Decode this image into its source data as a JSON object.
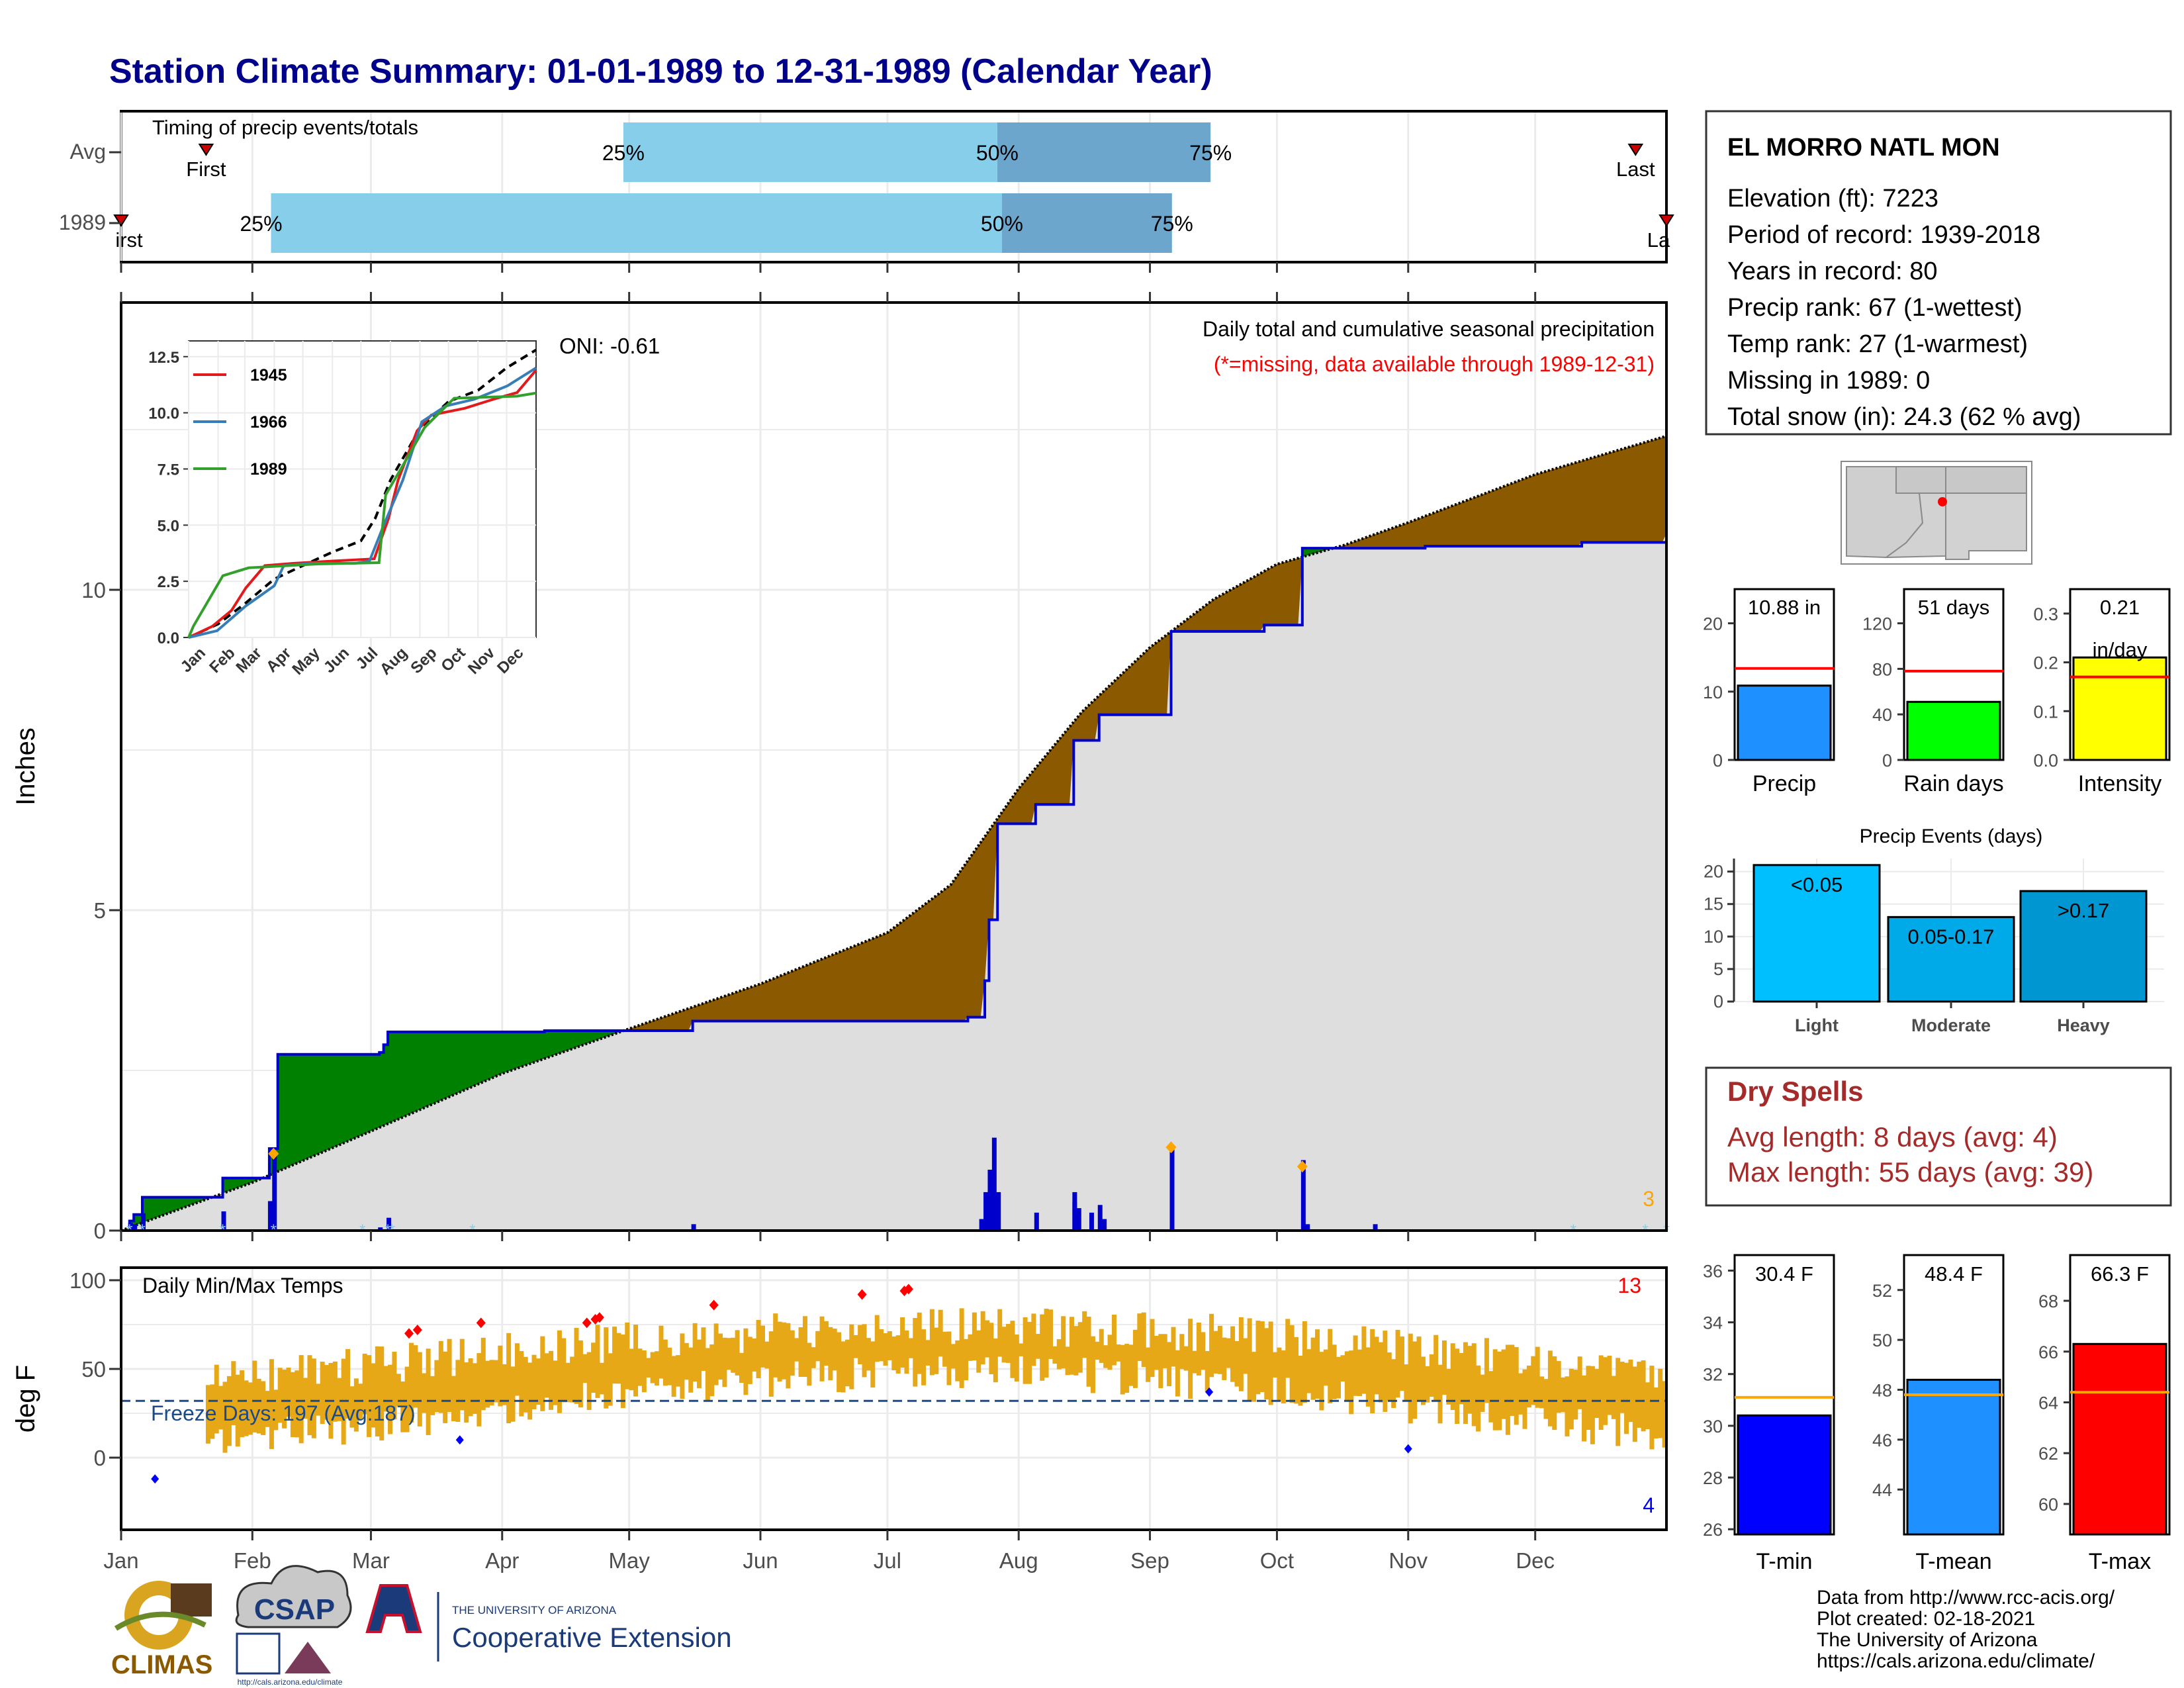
{
  "title": "Station Climate Summary: 01-01-1989 to 12-31-1989 (Calendar Year)",
  "timing": {
    "panel_title": "Timing of precip events/totals",
    "rows": [
      {
        "label": "Avg",
        "first_label": "First",
        "last_label": "Last",
        "first": 0.055,
        "last": 0.98,
        "p25": 0.325,
        "p50": 0.567,
        "p75": 0.705
      },
      {
        "label": "1989",
        "first_label": "irst",
        "last_label": "La",
        "first": 0.0,
        "last": 1.0,
        "p25": 0.097,
        "p50": 0.57,
        "p75": 0.68
      }
    ],
    "pct_labels": [
      "25%",
      "50%",
      "75%"
    ],
    "colors": {
      "light": "#87ceeb",
      "dark": "#6ca6cd",
      "marker": "#cc0000"
    }
  },
  "station": {
    "name": "EL MORRO NATL MON",
    "lines": [
      "Elevation (ft): 7223",
      "Period of record: 1939-2018",
      "Years in record: 80",
      "Precip rank: 67 (1-wettest)",
      "Temp rank: 27 (1-warmest)",
      "Missing in 1989: 0",
      "Total snow (in): 24.3 (62 % avg)"
    ]
  },
  "precip_panel": {
    "ylabel": "Inches",
    "yticks": [
      "0",
      "5",
      "10"
    ],
    "oni": "ONI: -0.61",
    "header": "Daily total and cumulative seasonal precipitation",
    "missing_note": "(*=missing, data available through 1989-12-31)",
    "corner_count": "3",
    "colors": {
      "avg_fill": "#8b5a00",
      "deficit_fill": "#008000",
      "area": "#dedede",
      "line": "#0000cc",
      "bars": "#0000cc"
    }
  },
  "inset": {
    "yticks": [
      "0.0",
      "2.5",
      "5.0",
      "7.5",
      "10.0",
      "12.5"
    ],
    "months": [
      "Jan",
      "Feb",
      "Mar",
      "Apr",
      "May",
      "Jun",
      "Jul",
      "Aug",
      "Sep",
      "Oct",
      "Nov",
      "Dec"
    ],
    "legend": [
      {
        "name": "1945",
        "color": "#e31a1c"
      },
      {
        "name": "1966",
        "color": "#377eb8"
      },
      {
        "name": "1989",
        "color": "#33a02c"
      }
    ]
  },
  "temp_panel": {
    "ylabel": "deg F",
    "yticks": [
      "0",
      "50",
      "100"
    ],
    "title": "Daily Min/Max Temps",
    "freeze": "Freeze Days: 197 (Avg:187)",
    "max_count": "13",
    "min_count": "4",
    "months": [
      "Jan",
      "Feb",
      "Mar",
      "Apr",
      "May",
      "Jun",
      "Jul",
      "Aug",
      "Sep",
      "Oct",
      "Nov",
      "Dec"
    ],
    "colors": {
      "range": "#e6a817",
      "tmax": "#ff0000",
      "tmin": "#0000cc"
    }
  },
  "mini_charts": {
    "precip": {
      "label": "Precip",
      "value_text": "10.88 in",
      "value": 10.88,
      "avg": 13.4,
      "ymax": 25,
      "yticks": [
        "0",
        "10",
        "20"
      ],
      "color": "#1e90ff"
    },
    "rain_days": {
      "label": "Rain days",
      "value_text": "51 days",
      "value": 51,
      "avg": 78,
      "ymax": 150,
      "yticks": [
        "0",
        "40",
        "80",
        "120"
      ],
      "color": "#00ff00"
    },
    "intensity": {
      "label": "Intensity",
      "value_text": "0.21",
      "value_text2": "in/day",
      "value": 0.21,
      "avg": 0.17,
      "ymax": 0.35,
      "yticks": [
        "0.0",
        "0.1",
        "0.2",
        "0.3"
      ],
      "color": "#ffff00"
    }
  },
  "events": {
    "title": "Precip Events (days)",
    "yticks": [
      "0",
      "5",
      "10",
      "15",
      "20"
    ],
    "bars": [
      {
        "cat": "Light",
        "label": "<0.05",
        "value": 21,
        "color": "#00bfff"
      },
      {
        "cat": "Moderate",
        "label": "0.05-0.17",
        "value": 13,
        "color": "#00a9e8"
      },
      {
        "cat": "Heavy",
        "label": ">0.17",
        "value": 17,
        "color": "#0096d1"
      }
    ]
  },
  "dry_spells": {
    "title": "Dry Spells",
    "avg": "Avg length: 8 days (avg: 4)",
    "max": "Max length: 55 days (avg: 39)",
    "color": "#a52a2a"
  },
  "temp_bars": [
    {
      "label": "T-min",
      "value_text": "30.4 F",
      "value": 30.4,
      "avg": 31.1,
      "ymin": 25.8,
      "ymax": 36.6,
      "yticks": [
        "26",
        "28",
        "30",
        "32",
        "34",
        "36"
      ],
      "color": "#0000ff"
    },
    {
      "label": "T-mean",
      "value_text": "48.4 F",
      "value": 48.4,
      "avg": 47.8,
      "ymin": 42.2,
      "ymax": 53.4,
      "yticks": [
        "44",
        "46",
        "48",
        "50",
        "52"
      ],
      "color": "#1e90ff"
    },
    {
      "label": "T-max",
      "value_text": "66.3 F",
      "value": 66.3,
      "avg": 64.4,
      "ymin": 58.8,
      "ymax": 69.8,
      "yticks": [
        "60",
        "62",
        "64",
        "66",
        "68"
      ],
      "color": "#ff0000"
    }
  ],
  "footer": {
    "lines": [
      "Data from http://www.rcc-acis.org/",
      "Plot created: 02-18-2021",
      "The University of Arizona",
      "https://cals.arizona.edu/climate/"
    ],
    "climas": "CLIMAS",
    "csap": "CSAP",
    "csap_url": "http://cals.arizona.edu/climate",
    "ua_small": "THE UNIVERSITY OF ARIZONA",
    "ua_big": "Cooperative Extension"
  }
}
